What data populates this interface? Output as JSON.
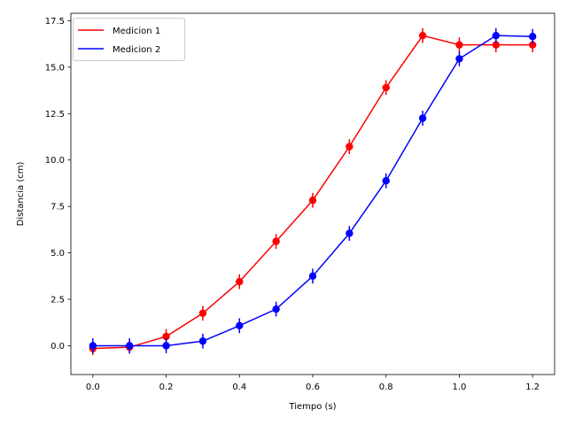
{
  "chart_data": {
    "type": "line",
    "title": "",
    "xlabel": "Tiempo (s)",
    "ylabel": "Distancia (cm)",
    "xlim": [
      -0.06,
      1.26
    ],
    "ylim": [
      -1.55,
      17.9
    ],
    "x_ticks": [
      0.0,
      0.2,
      0.4,
      0.6,
      0.8,
      1.0,
      1.2
    ],
    "x_tick_labels": [
      "0.0",
      "0.2",
      "0.4",
      "0.6",
      "0.8",
      "1.0",
      "1.2"
    ],
    "y_ticks": [
      0.0,
      2.5,
      5.0,
      7.5,
      10.0,
      12.5,
      15.0,
      17.5
    ],
    "y_tick_labels": [
      "0.0",
      "2.5",
      "5.0",
      "7.5",
      "10.0",
      "12.5",
      "15.0",
      "17.5"
    ],
    "grid": false,
    "legend_position": "top-left",
    "x": [
      0.0,
      0.1,
      0.2,
      0.3,
      0.4,
      0.5,
      0.6,
      0.7,
      0.8,
      0.9,
      1.0,
      1.1,
      1.2
    ],
    "series": [
      {
        "name": "Medicion 1",
        "color": "#ff0000",
        "values": [
          -0.15,
          -0.08,
          0.5,
          1.75,
          3.45,
          5.62,
          7.83,
          10.72,
          13.9,
          16.7,
          16.2,
          16.2,
          16.2
        ],
        "errors": [
          0.35,
          0.35,
          0.4,
          0.4,
          0.4,
          0.4,
          0.4,
          0.4,
          0.4,
          0.4,
          0.4,
          0.4,
          0.4
        ]
      },
      {
        "name": "Medicion 2",
        "color": "#0000ff",
        "values": [
          0.0,
          0.0,
          0.0,
          0.25,
          1.08,
          1.97,
          3.75,
          6.05,
          8.88,
          12.25,
          15.45,
          16.7,
          16.65
        ],
        "errors": [
          0.4,
          0.4,
          0.4,
          0.4,
          0.4,
          0.4,
          0.4,
          0.4,
          0.4,
          0.4,
          0.4,
          0.4,
          0.4
        ]
      }
    ]
  }
}
